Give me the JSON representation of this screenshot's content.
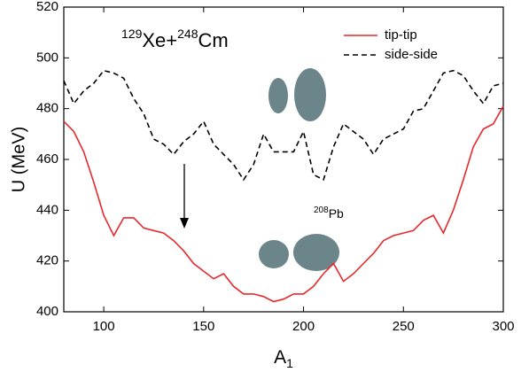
{
  "chart_data": {
    "type": "line",
    "ylabel": "U (MeV)",
    "xlabel": {
      "parts": [
        "A",
        "1"
      ]
    },
    "annotations": [
      {
        "parts": [
          "129",
          "Xe+",
          "248",
          "Cm"
        ]
      },
      {
        "parts": [
          "208",
          "Pb"
        ]
      }
    ],
    "x": [
      80,
      85,
      90,
      95,
      100,
      105,
      110,
      115,
      120,
      125,
      130,
      135,
      140,
      145,
      150,
      155,
      160,
      165,
      170,
      175,
      180,
      185,
      190,
      195,
      200,
      205,
      210,
      215,
      220,
      225,
      230,
      235,
      240,
      245,
      250,
      255,
      260,
      265,
      270,
      275,
      280,
      285,
      290,
      295,
      300
    ],
    "series": [
      {
        "name": "tip-tip",
        "color": "#e8282b",
        "dash": "solid",
        "values": [
          475,
          471,
          463,
          451,
          438,
          430,
          437,
          437,
          433,
          432,
          431,
          428,
          424,
          419,
          416,
          413,
          415,
          410,
          407,
          407,
          406,
          404,
          405,
          407,
          407,
          410,
          415,
          419,
          412,
          415,
          419,
          423,
          428,
          430,
          431,
          432,
          436,
          438,
          431,
          440,
          452,
          465,
          472,
          474,
          481
        ]
      },
      {
        "name": "side-side",
        "color": "#000000",
        "dash": "dashed",
        "values": [
          491,
          482,
          487,
          490,
          495,
          494,
          492,
          484,
          478,
          468,
          466,
          462,
          467,
          470,
          475,
          466,
          462,
          458,
          452,
          458,
          470,
          463,
          463,
          463,
          471,
          454,
          452,
          465,
          474,
          471,
          468,
          462,
          468,
          470,
          472,
          479,
          480,
          487,
          494,
          495,
          493,
          487,
          482,
          489,
          490
        ]
      }
    ],
    "xlim": [
      80,
      300
    ],
    "xticks": [
      100,
      150,
      200,
      250,
      300
    ],
    "ylim": [
      400,
      520
    ],
    "yticks": [
      400,
      420,
      440,
      460,
      480,
      500,
      520
    ],
    "legend": "top-right",
    "grid": false
  }
}
